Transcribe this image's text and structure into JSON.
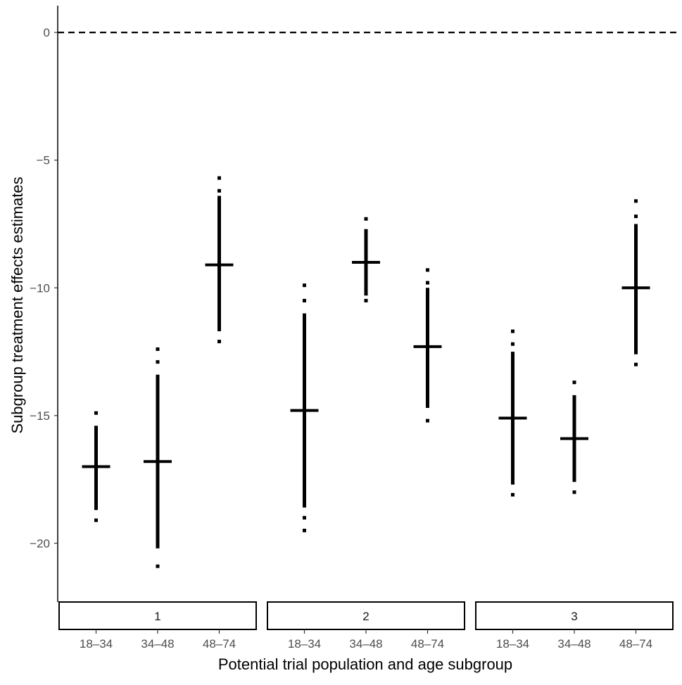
{
  "chart_data": {
    "type": "scatter",
    "title": "",
    "xlabel": "Potential trial population and age subgroup",
    "ylabel": "Subgroup treatment effects estimates",
    "ylim": [
      -22.3,
      1.05
    ],
    "yticks": [
      0,
      -5,
      -10,
      -15,
      -20
    ],
    "ytick_labels": [
      "0",
      "−5",
      "−10",
      "−15",
      "−20"
    ],
    "reference_line": {
      "y": 0,
      "style": "dashed"
    },
    "grid": false,
    "legend": "none",
    "mark_color": "#000000",
    "panels": [
      {
        "label": "1",
        "groups": [
          {
            "category": "18–34",
            "estimate": -17.0,
            "dense_range": [
              -18.7,
              -15.4
            ],
            "dots": [
              -14.9,
              -19.1
            ]
          },
          {
            "category": "34–48",
            "estimate": -16.8,
            "dense_range": [
              -20.2,
              -13.4
            ],
            "dots": [
              -12.4,
              -12.9,
              -20.9
            ]
          },
          {
            "category": "48–74",
            "estimate": -9.1,
            "dense_range": [
              -11.7,
              -6.4
            ],
            "dots": [
              -5.7,
              -6.2,
              -12.1
            ]
          }
        ]
      },
      {
        "label": "2",
        "groups": [
          {
            "category": "18–34",
            "estimate": -14.8,
            "dense_range": [
              -18.6,
              -11.0
            ],
            "dots": [
              -9.9,
              -10.5,
              -19.0,
              -19.5
            ]
          },
          {
            "category": "34–48",
            "estimate": -9.0,
            "dense_range": [
              -10.3,
              -7.7
            ],
            "dots": [
              -7.3,
              -10.5
            ]
          },
          {
            "category": "48–74",
            "estimate": -12.3,
            "dense_range": [
              -14.7,
              -10.0
            ],
            "dots": [
              -9.3,
              -9.8,
              -15.2
            ]
          }
        ]
      },
      {
        "label": "3",
        "groups": [
          {
            "category": "18–34",
            "estimate": -15.1,
            "dense_range": [
              -17.7,
              -12.5
            ],
            "dots": [
              -11.7,
              -12.2,
              -18.1
            ]
          },
          {
            "category": "34–48",
            "estimate": -15.9,
            "dense_range": [
              -17.6,
              -14.2
            ],
            "dots": [
              -13.7,
              -18.0
            ]
          },
          {
            "category": "48–74",
            "estimate": -10.0,
            "dense_range": [
              -12.6,
              -7.5
            ],
            "dots": [
              -6.6,
              -7.2,
              -13.0
            ]
          }
        ]
      }
    ]
  }
}
